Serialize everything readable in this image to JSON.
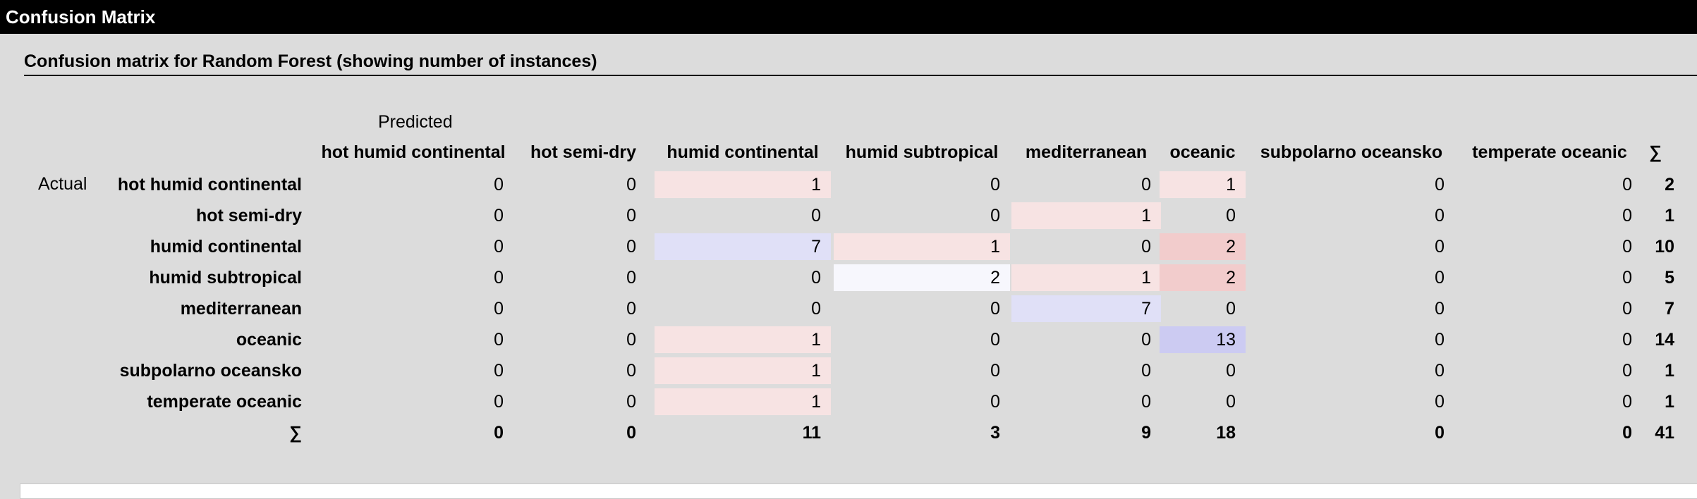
{
  "window": {
    "title": "Confusion Matrix"
  },
  "section": {
    "title": "Confusion matrix for Random Forest (showing number of instances)"
  },
  "matrix": {
    "predicted_label": "Predicted",
    "actual_label": "Actual",
    "sum_symbol": "∑",
    "columns": [
      "hot humid continental",
      "hot semi-dry",
      "humid continental",
      "humid subtropical",
      "mediterranean",
      "oceanic",
      "subpolarno oceansko",
      "temperate oceanic"
    ],
    "rows": [
      {
        "label": "hot humid continental",
        "values": [
          "0",
          "0",
          "1",
          "0",
          "0",
          "1",
          "0",
          "0"
        ],
        "sum": "2"
      },
      {
        "label": "hot semi-dry",
        "values": [
          "0",
          "0",
          "0",
          "0",
          "1",
          "0",
          "0",
          "0"
        ],
        "sum": "1"
      },
      {
        "label": "humid continental",
        "values": [
          "0",
          "0",
          "7",
          "1",
          "0",
          "2",
          "0",
          "0"
        ],
        "sum": "10"
      },
      {
        "label": "humid subtropical",
        "values": [
          "0",
          "0",
          "0",
          "2",
          "1",
          "2",
          "0",
          "0"
        ],
        "sum": "5"
      },
      {
        "label": "mediterranean",
        "values": [
          "0",
          "0",
          "0",
          "0",
          "7",
          "0",
          "0",
          "0"
        ],
        "sum": "7"
      },
      {
        "label": "oceanic",
        "values": [
          "0",
          "0",
          "1",
          "0",
          "0",
          "13",
          "0",
          "0"
        ],
        "sum": "14"
      },
      {
        "label": "subpolarno oceansko",
        "values": [
          "0",
          "0",
          "1",
          "0",
          "0",
          "0",
          "0",
          "0"
        ],
        "sum": "1"
      },
      {
        "label": "temperate oceanic",
        "values": [
          "0",
          "0",
          "1",
          "0",
          "0",
          "0",
          "0",
          "0"
        ],
        "sum": "1"
      }
    ],
    "column_sums": [
      "0",
      "0",
      "11",
      "3",
      "9",
      "18",
      "0",
      "0"
    ],
    "grand_total": "41",
    "cell_colors": {
      "0,2": "#f7e3e3",
      "0,5": "#f7e3e3",
      "1,4": "#f7e3e3",
      "2,2": "#e0e0f7",
      "2,3": "#f7e3e3",
      "2,5": "#f2cccc",
      "3,3": "#f7f7fd",
      "3,4": "#f7e3e3",
      "3,5": "#f2cccc",
      "4,4": "#e0e0f7",
      "5,2": "#f7e3e3",
      "5,5": "#cccbf2",
      "6,2": "#f7e3e3",
      "7,2": "#f7e3e3"
    }
  }
}
